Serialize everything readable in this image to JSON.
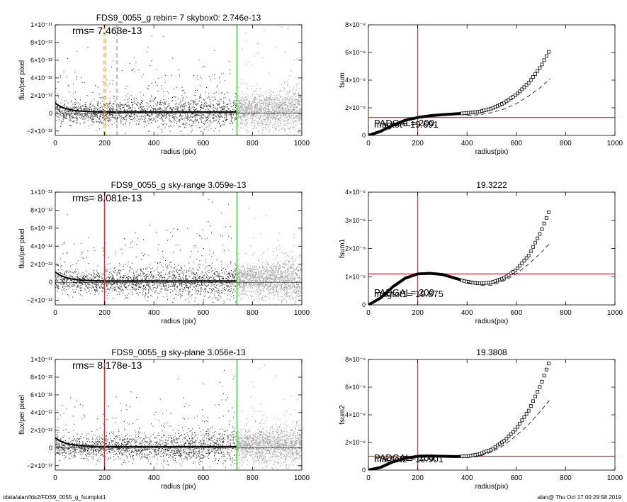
{
  "footer": {
    "path": "/data/alan/fds2/FDS9_0055_g_fsumplot1",
    "stamp": "alan@  Thu Oct 17 00:29:58 2019"
  },
  "chart_data": [
    {
      "type": "scatter",
      "title": "FDS9_0055_g rebin= 7    skybox0:  2.746e-13",
      "rms_label": "rms= 7.468e-13",
      "xlabel": "radius (pix)",
      "ylabel": "flux/per pixel",
      "xlim": [
        0,
        1000
      ],
      "ylim": [
        -2.5e-12,
        1e-11
      ],
      "x_ticks": [
        "0",
        "200",
        "400",
        "600",
        "800",
        "1000"
      ],
      "y_ticks": [
        {
          "v": -2e-12,
          "label": "−2×10⁻¹²"
        },
        {
          "v": 0,
          "label": "0"
        },
        {
          "v": 2e-12,
          "label": "2×10⁻¹²"
        },
        {
          "v": 4e-12,
          "label": "4×10⁻¹²"
        },
        {
          "v": 6e-12,
          "label": "6×10⁻¹²"
        },
        {
          "v": 8e-12,
          "label": "8×10⁻¹²"
        },
        {
          "v": 1e-11,
          "label": "1×10⁻¹¹"
        }
      ],
      "vlines": [
        {
          "x": 198,
          "color": "#e8a030",
          "style": "dashed"
        },
        {
          "x": 205,
          "color": "#e8a030",
          "style": "dashed"
        },
        {
          "x": 250,
          "color": "#888888",
          "style": "dashed"
        },
        {
          "x": 737,
          "color": "#33dd33",
          "style": "solid"
        }
      ],
      "green_x": 737
    },
    {
      "type": "line",
      "title": "",
      "xlabel": "radius(pix)",
      "ylabel": "fsum",
      "xlim": [
        0,
        1000
      ],
      "ylim": [
        0,
        8e-08
      ],
      "x_ticks": [
        "0",
        "200",
        "400",
        "600",
        "800",
        "1000"
      ],
      "y_ticks": [
        {
          "v": 0,
          "label": "0"
        },
        {
          "v": 2e-08,
          "label": "2×10⁻⁸"
        },
        {
          "v": 4e-08,
          "label": "4×10⁻⁸"
        },
        {
          "v": 6e-08,
          "label": "6×10⁻⁸"
        },
        {
          "v": 8e-08,
          "label": "8×10⁻⁸"
        }
      ],
      "hline": 1.3e-08,
      "vline": 200,
      "annotations": [
        "magtot= 19.691",
        "PADGAL=   200."
      ],
      "curve_x": [
        0,
        50,
        100,
        150,
        200,
        250,
        300,
        350,
        400,
        450,
        500,
        550,
        600,
        650,
        700,
        737
      ],
      "curve_y": [
        0,
        3e-09,
        7.5e-09,
        1.1e-08,
        1.3e-08,
        1.42e-08,
        1.5e-08,
        1.56e-08,
        1.62e-08,
        1.72e-08,
        1.95e-08,
        2.35e-08,
        2.95e-08,
        3.8e-08,
        5e-08,
        6.25e-08
      ],
      "dashed_x": [
        400,
        450,
        500,
        550,
        600,
        650,
        700,
        737
      ],
      "dashed_y": [
        1.45e-08,
        1.5e-08,
        1.65e-08,
        1.9e-08,
        2.3e-08,
        2.85e-08,
        3.5e-08,
        4.1e-08
      ]
    },
    {
      "type": "scatter",
      "title": "FDS9_0055_g sky-range  3.059e-13",
      "rms_label": "rms= 8.081e-13",
      "xlabel": "radius (pix)",
      "ylabel": "flux/per pixel",
      "xlim": [
        0,
        1000
      ],
      "ylim": [
        -2.5e-12,
        1e-11
      ],
      "x_ticks": [
        "0",
        "200",
        "400",
        "600",
        "800",
        "1000"
      ],
      "y_ticks": [
        {
          "v": -2e-12,
          "label": "−2×10⁻¹²"
        },
        {
          "v": 0,
          "label": "0"
        },
        {
          "v": 2e-12,
          "label": "2×10⁻¹²"
        },
        {
          "v": 4e-12,
          "label": "4×10⁻¹²"
        },
        {
          "v": 6e-12,
          "label": "6×10⁻¹²"
        },
        {
          "v": 8e-12,
          "label": "8×10⁻¹²"
        },
        {
          "v": 1e-11,
          "label": "1×10⁻¹¹"
        }
      ],
      "vlines": [
        {
          "x": 200,
          "color": "#e03030",
          "style": "solid"
        },
        {
          "x": 737,
          "color": "#33dd33",
          "style": "solid"
        }
      ],
      "green_x": 737
    },
    {
      "type": "line",
      "title": "19.3222",
      "xlabel": "radius(pix)",
      "ylabel": "fsum1",
      "xlim": [
        0,
        1000
      ],
      "ylim": [
        0,
        4e-08
      ],
      "x_ticks": [
        "0",
        "200",
        "400",
        "600",
        "800",
        "1000"
      ],
      "y_ticks": [
        {
          "v": 0,
          "label": "0"
        },
        {
          "v": 1e-08,
          "label": "1×10⁻⁸"
        },
        {
          "v": 2e-08,
          "label": "2×10⁻⁸"
        },
        {
          "v": 3e-08,
          "label": "3×10⁻⁸"
        },
        {
          "v": 4e-08,
          "label": "4×10⁻⁸"
        }
      ],
      "hline": 1.1e-08,
      "vline": 200,
      "annotations": [
        "magtot1= 19.875",
        "PADGAL=   200."
      ],
      "curve_x": [
        0,
        50,
        100,
        150,
        200,
        250,
        300,
        350,
        400,
        450,
        500,
        550,
        600,
        650,
        700,
        737
      ],
      "curve_y": [
        0,
        2.5e-09,
        6.5e-09,
        9.5e-09,
        1.1e-08,
        1.12e-08,
        1.08e-08,
        9.5e-09,
        8.2e-09,
        7.6e-09,
        8e-09,
        9.5e-09,
        1.25e-08,
        1.75e-08,
        2.6e-08,
        3.42e-08
      ],
      "dashed_x": [
        400,
        450,
        500,
        550,
        600,
        650,
        700,
        737
      ],
      "dashed_y": [
        8e-09,
        7e-09,
        7e-09,
        8.5e-09,
        1.1e-08,
        1.45e-08,
        1.85e-08,
        2.2e-08
      ]
    },
    {
      "type": "scatter",
      "title": "FDS9_0055_g sky-plane  3.056e-13",
      "rms_label": "rms= 8.178e-13",
      "xlabel": "radius (pix)",
      "ylabel": "flux/per pixel",
      "xlim": [
        0,
        1000
      ],
      "ylim": [
        -2.5e-12,
        1e-11
      ],
      "x_ticks": [
        "0",
        "200",
        "400",
        "600",
        "800",
        "1000"
      ],
      "y_ticks": [
        {
          "v": -2e-12,
          "label": "−2×10⁻¹²"
        },
        {
          "v": 0,
          "label": "0"
        },
        {
          "v": 2e-12,
          "label": "2×10⁻¹²"
        },
        {
          "v": 4e-12,
          "label": "4×10⁻¹²"
        },
        {
          "v": 6e-12,
          "label": "6×10⁻¹²"
        },
        {
          "v": 8e-12,
          "label": "8×10⁻¹²"
        },
        {
          "v": 1e-11,
          "label": "1×10⁻¹¹"
        }
      ],
      "vlines": [
        {
          "x": 200,
          "color": "#e03030",
          "style": "solid"
        },
        {
          "x": 737,
          "color": "#33dd33",
          "style": "solid"
        }
      ],
      "green_x": 737
    },
    {
      "type": "line",
      "title": "19.3808",
      "xlabel": "radius(pix)",
      "ylabel": "fsum2",
      "xlim": [
        0,
        1000
      ],
      "ylim": [
        0,
        8e-08
      ],
      "x_ticks": [
        "0",
        "200",
        "400",
        "600",
        "800",
        "1000"
      ],
      "y_ticks": [
        {
          "v": 0,
          "label": "0"
        },
        {
          "v": 2e-08,
          "label": "2×10⁻⁸"
        },
        {
          "v": 4e-08,
          "label": "4×10⁻⁸"
        },
        {
          "v": 6e-08,
          "label": "6×10⁻⁸"
        },
        {
          "v": 8e-08,
          "label": "8×10⁻⁸"
        }
      ],
      "hline": 1e-08,
      "vline": 200,
      "annotations": [
        "magtot2= 19.901",
        "PADGAL=   200."
      ],
      "curve_x": [
        0,
        50,
        100,
        150,
        200,
        250,
        300,
        350,
        400,
        450,
        500,
        550,
        600,
        650,
        700,
        737
      ],
      "curve_y": [
        0,
        2e-09,
        6e-09,
        8.5e-09,
        1e-08,
        1.02e-08,
        1e-08,
        9.8e-09,
        1e-08,
        1.15e-08,
        1.5e-08,
        2.1e-08,
        3e-08,
        4.3e-08,
        6.2e-08,
        8e-08
      ],
      "dashed_x": [
        400,
        450,
        500,
        550,
        600,
        650,
        700,
        737
      ],
      "dashed_y": [
        9e-09,
        1e-08,
        1.3e-08,
        1.8e-08,
        2.5e-08,
        3.3e-08,
        4.3e-08,
        5.1e-08
      ]
    }
  ]
}
